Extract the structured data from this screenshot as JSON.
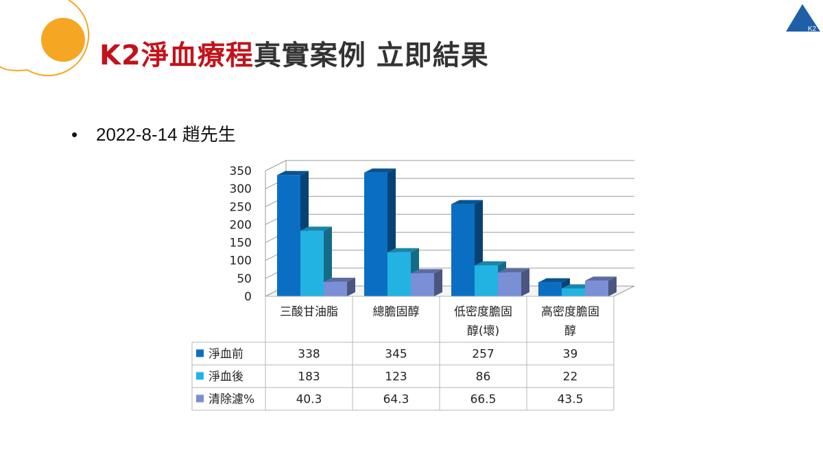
{
  "title": {
    "highlight": "K2淨血療程",
    "rest": "真實案例 立即結果"
  },
  "bullet": {
    "text": "2022-8-14 趙先生"
  },
  "logo": {
    "text": "K2"
  },
  "colors": {
    "accent_red": "#c3121b",
    "orange_circle": "#f5a623",
    "logo_blue": "#1f5fa8"
  },
  "chart_data": {
    "type": "bar",
    "categories": [
      [
        "三酸甘油脂"
      ],
      [
        "總膽固醇"
      ],
      [
        "低密度膽固",
        "醇(壞)"
      ],
      [
        "高密度膽固",
        "醇"
      ]
    ],
    "series": [
      {
        "name": "淨血前",
        "values": [
          338,
          345,
          257,
          39
        ],
        "color": "#0a6fc2"
      },
      {
        "name": "淨血後",
        "values": [
          183,
          123,
          86,
          22
        ],
        "color": "#22b3e3"
      },
      {
        "name": "清除濾%",
        "values": [
          40.3,
          64.3,
          66.5,
          43.5
        ],
        "color": "#7b8fd6"
      }
    ],
    "yticks": [
      0,
      50,
      100,
      150,
      200,
      250,
      300,
      350
    ],
    "ylim": [
      0,
      350
    ],
    "grid": true,
    "legend": "data-table",
    "style": "3d-clustered-column"
  }
}
